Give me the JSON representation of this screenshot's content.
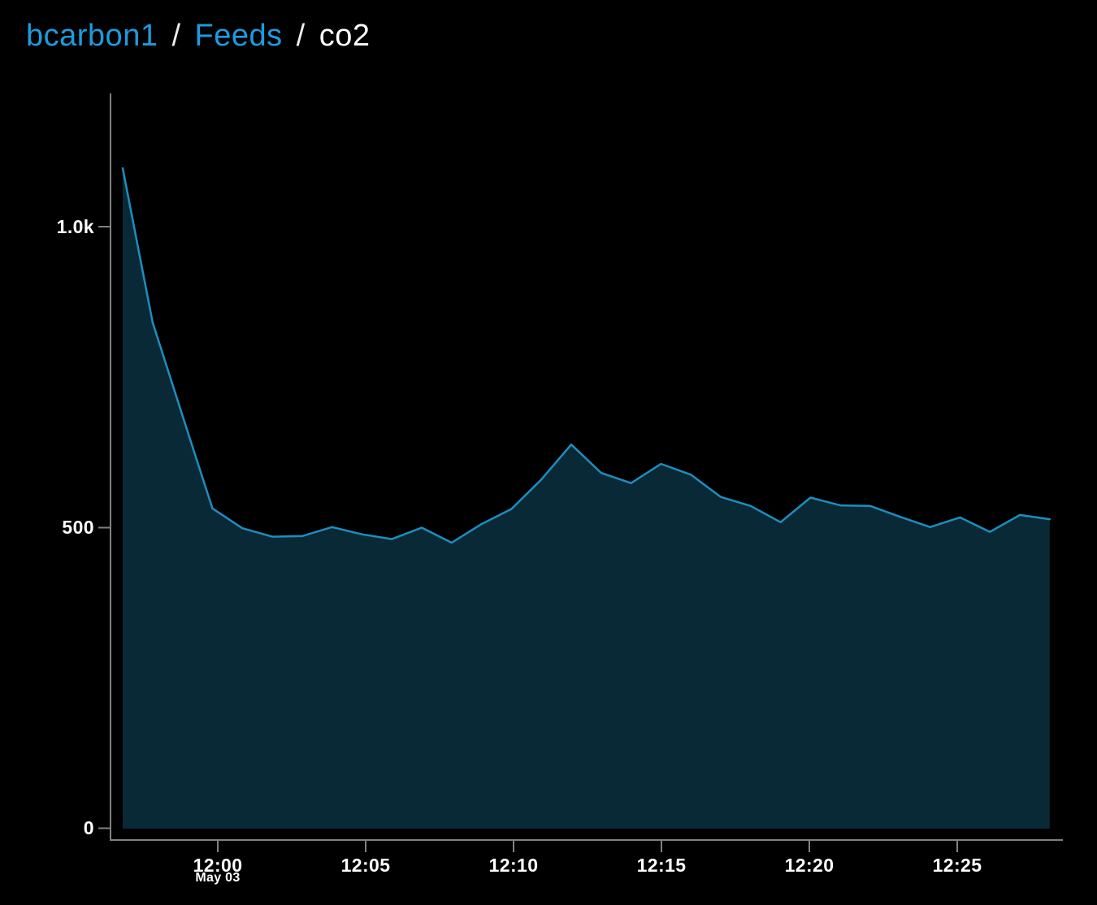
{
  "breadcrumb": {
    "user": "bcarbon1",
    "separator": "/",
    "section": "Feeds",
    "feed": "co2"
  },
  "colors": {
    "background": "#000000",
    "link_blue": "#1e9bdf",
    "text_white": "#ffffff",
    "axis_gray": "#818181",
    "line_blue": "#1d8ebf",
    "area_fill": "#0a2936"
  },
  "chart_data": {
    "type": "area",
    "title": "co2",
    "x": [
      "11:57",
      "11:58",
      "11:59",
      "12:00",
      "12:01",
      "12:02",
      "12:03",
      "12:04",
      "12:05",
      "12:06",
      "12:07",
      "12:08",
      "12:09",
      "12:10",
      "12:11",
      "12:12",
      "12:13",
      "12:14",
      "12:15",
      "12:16",
      "12:17",
      "12:18",
      "12:19",
      "12:20",
      "12:21",
      "12:22",
      "12:23",
      "12:24",
      "12:25",
      "12:26",
      "12:27",
      "12:28"
    ],
    "values": [
      1097,
      841,
      686,
      532,
      499,
      485,
      486,
      501,
      489,
      481,
      500,
      475,
      506,
      531,
      580,
      638,
      591,
      574,
      606,
      588,
      551,
      536,
      509,
      550,
      537,
      536,
      518,
      501,
      517,
      493,
      521,
      514
    ],
    "xlabel": "",
    "ylabel": "",
    "x_tick_labels": [
      "12:00",
      "12:05",
      "12:10",
      "12:15",
      "12:20",
      "12:25"
    ],
    "x_axis_date": "May 03",
    "y_ticks": [
      {
        "value": 0,
        "label": "0"
      },
      {
        "value": 500,
        "label": "500"
      },
      {
        "value": 1000,
        "label": "1.0k"
      }
    ],
    "ylim": [
      0,
      1221
    ],
    "grid": false,
    "legend": false,
    "line_color": "#1d8ebf",
    "area_fill": "#0a2936"
  }
}
